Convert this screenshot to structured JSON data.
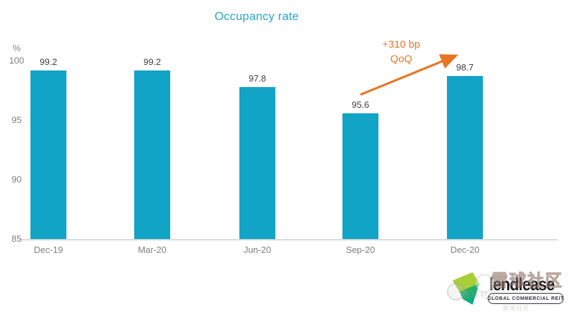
{
  "chart_data": {
    "type": "bar",
    "title": "Occupancy rate",
    "unit_label": "%",
    "categories": [
      "Dec-19",
      "Mar-20",
      "Jun-20",
      "Sep-20",
      "Dec-20"
    ],
    "values": [
      99.2,
      99.2,
      97.8,
      95.6,
      98.7
    ],
    "value_labels": [
      "99.2",
      "99.2",
      "97.8",
      "95.6",
      "98.7"
    ],
    "ylim": [
      85,
      100
    ],
    "yticks": [
      "100",
      "95",
      "90",
      "85"
    ],
    "grid": false,
    "legend": false,
    "bar_color": "#12A4C6",
    "title_color": "#27A7CA",
    "annotation": {
      "line1": "+310 bp",
      "line2": "QoQ",
      "color": "#E87524",
      "arrow_from_category": "Sep-20",
      "arrow_to_category": "Dec-20"
    }
  },
  "logo": {
    "wordmark": "lendlease",
    "badge": "GLOBAL COMMERCIAL REIT",
    "swoosh_lime": "#A8CF38",
    "swoosh_green": "#45B649",
    "swoosh_teal": "#00A88C"
  },
  "watermark": {
    "overlay_text": "雪球社区",
    "name_text": "雪球社区",
    "byline_text": "雪球社区"
  }
}
